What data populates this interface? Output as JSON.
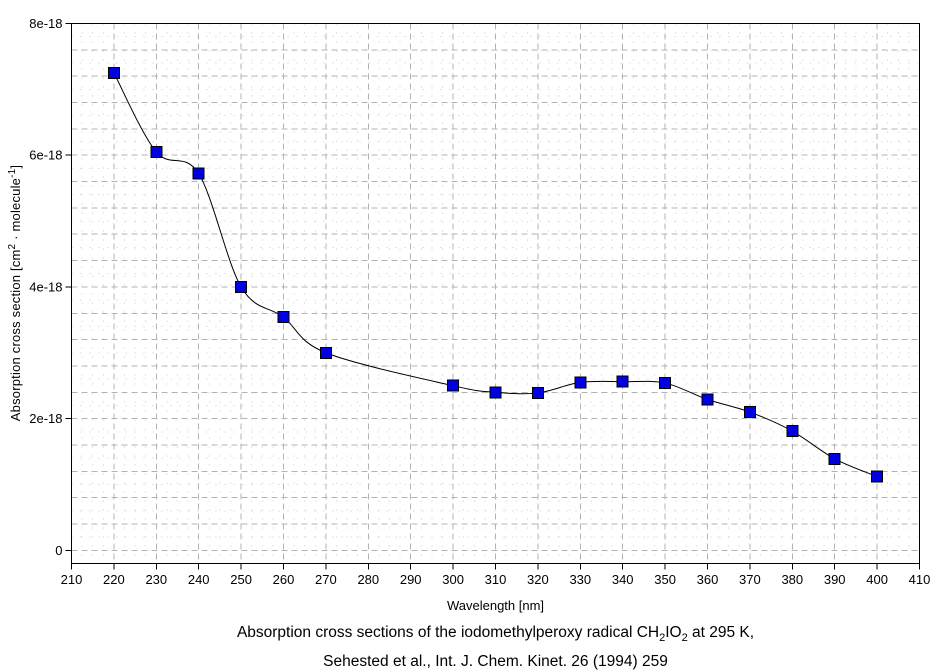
{
  "chart_data": {
    "type": "line",
    "title": "",
    "xlabel": "Wavelength [nm]",
    "ylabel": "Absorption cross section [cm2 · molecule-1]",
    "x": [
      220,
      230,
      240,
      250,
      260,
      270,
      300,
      310,
      320,
      330,
      340,
      350,
      360,
      370,
      380,
      390,
      400
    ],
    "values_1e18": [
      7.25,
      6.05,
      5.72,
      4.0,
      3.54,
      3.0,
      2.5,
      2.4,
      2.39,
      2.55,
      2.56,
      2.54,
      2.29,
      2.1,
      1.81,
      1.39,
      1.12
    ],
    "y_unit": "cm2 molecule-1 (values are multiples of 1e-18)",
    "xlim": [
      210,
      410
    ],
    "ylim_1e18": [
      -0.2,
      8.0
    ],
    "x_major_ticks": [
      210,
      220,
      230,
      240,
      250,
      260,
      270,
      280,
      290,
      300,
      310,
      320,
      330,
      340,
      350,
      360,
      370,
      380,
      390,
      400,
      410
    ],
    "x_tick_labels": [
      "210",
      "220",
      "230",
      "240",
      "250",
      "260",
      "270",
      "280",
      "290",
      "300",
      "310",
      "320",
      "330",
      "340",
      "350",
      "360",
      "370",
      "380",
      "390",
      "400",
      "410"
    ],
    "y_major_ticks_1e18": [
      0,
      2,
      4,
      6,
      8
    ],
    "y_tick_labels": [
      "0",
      "2e-18",
      "4e-18",
      "6e-18",
      "8e-18"
    ],
    "x_minor_step": 2.5,
    "y_grid_major_step_1e18": 0.4,
    "y_grid_minor_step_1e18": 0.2,
    "grid": {
      "on": true,
      "major_color": "#b3b3b3",
      "minor_color": "#cacaca"
    },
    "legend": {
      "visible": false
    },
    "line_color": "#000000",
    "marker": {
      "shape": "square",
      "size": 11,
      "fill": "#0000e0",
      "stroke": "#000000"
    }
  },
  "ylabel_parts": {
    "pre": "Absorption cross section [cm",
    "sup1": "2",
    "mid": " · molecule",
    "sup2": "-1",
    "post": "]"
  },
  "caption": {
    "line1_pre": "Absorption cross sections of the iodomethylperoxy radical CH",
    "line1_sub1": "2",
    "line1_mid": "IO",
    "line1_sub2": "2",
    "line1_post": " at 295 K,",
    "line2": "Sehested et al., Int. J. Chem. Kinet. 26 (1994) 259"
  }
}
